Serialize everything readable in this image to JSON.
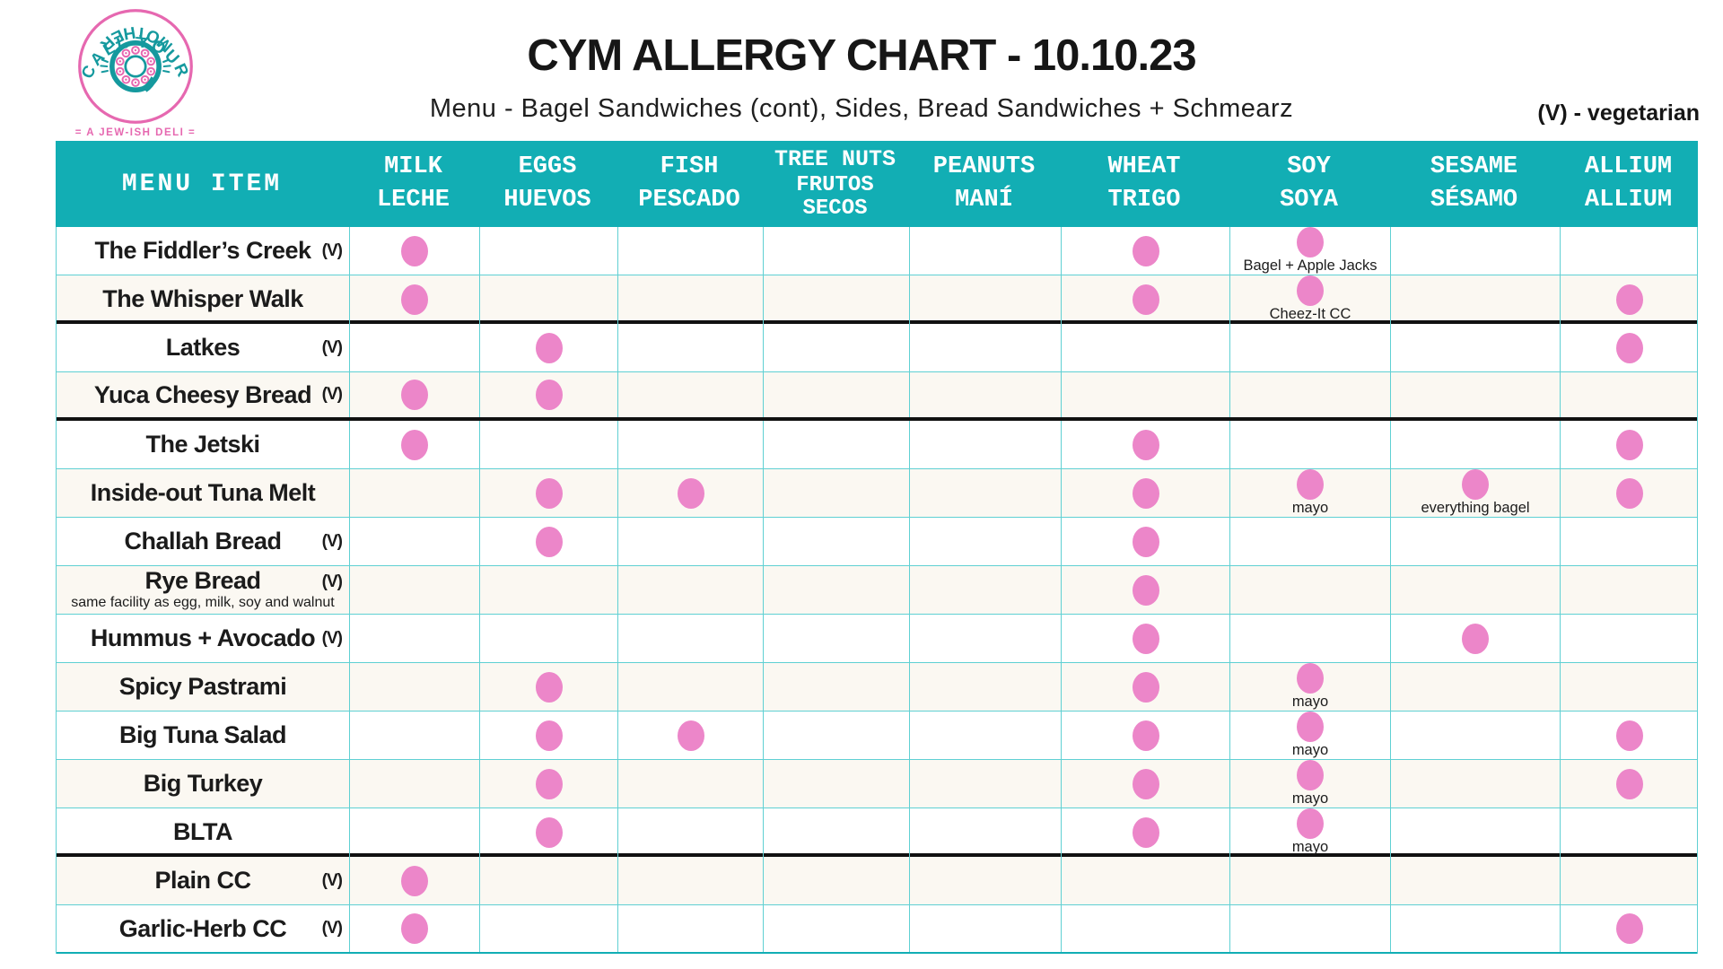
{
  "colors": {
    "teal": "#12aeb4",
    "grid": "#5fd0d3",
    "pink": "#ec86c9",
    "ink": "#1b1b1b",
    "logo-pink": "#e668b0",
    "logo-teal": "#15999e"
  },
  "header": {
    "title": "CYM ALLERGY CHART - 10.10.23",
    "subtitle": "Menu - Bagel Sandwiches (cont), Sides, Bread Sandwiches + Schmearz",
    "legend": "(V) - vegetarian",
    "logo": {
      "arc_top": "CALL YOUR",
      "arc_bottom": "MOTHER",
      "tagline": "= A JEW-ISH DELI ="
    }
  },
  "table": {
    "veg_label": "(V)"
  },
  "chart_data": {
    "type": "table",
    "title": "CYM ALLERGY CHART - 10.10.23",
    "row_header": "MENU ITEM",
    "columns": [
      {
        "key": "milk",
        "en": "MILK",
        "es": "LECHE"
      },
      {
        "key": "eggs",
        "en": "EGGS",
        "es": "HUEVOS"
      },
      {
        "key": "fish",
        "en": "FISH",
        "es": "PESCADO"
      },
      {
        "key": "tree_nuts",
        "en": "TREE NUTS",
        "es": "FRUTOS SECOS"
      },
      {
        "key": "peanuts",
        "en": "PEANUTS",
        "es": "MANÍ"
      },
      {
        "key": "wheat",
        "en": "WHEAT",
        "es": "TRIGO"
      },
      {
        "key": "soy",
        "en": "SOY",
        "es": "SOYA"
      },
      {
        "key": "sesame",
        "en": "SESAME",
        "es": "SÉSAMO"
      },
      {
        "key": "allium",
        "en": "ALLIUM",
        "es": "ALLIUM"
      }
    ],
    "rows": [
      {
        "name": "The Fiddler’s Creek",
        "veg": true,
        "dots": {
          "milk": "",
          "wheat": "",
          "soy": "Bagel + Apple Jacks"
        }
      },
      {
        "name": "The Whisper Walk",
        "veg": false,
        "divider_after": true,
        "dots": {
          "milk": "",
          "wheat": "",
          "soy": "Cheez-It CC",
          "allium": ""
        }
      },
      {
        "name": "Latkes",
        "veg": true,
        "dots": {
          "eggs": "",
          "allium": ""
        }
      },
      {
        "name": "Yuca Cheesy Bread",
        "veg": true,
        "divider_after": true,
        "dots": {
          "milk": "",
          "eggs": ""
        }
      },
      {
        "name": "The Jetski",
        "veg": false,
        "dots": {
          "milk": "",
          "wheat": "",
          "allium": ""
        }
      },
      {
        "name": "Inside-out Tuna Melt",
        "veg": false,
        "dots": {
          "eggs": "",
          "fish": "",
          "wheat": "",
          "soy": "mayo",
          "sesame": "everything bagel",
          "allium": ""
        }
      },
      {
        "name": "Challah Bread",
        "veg": true,
        "dots": {
          "eggs": "",
          "wheat": ""
        }
      },
      {
        "name": "Rye Bread",
        "veg": true,
        "sub": "same facility as egg, milk, soy and walnut",
        "dots": {
          "wheat": ""
        }
      },
      {
        "name": "Hummus + Avocado",
        "veg": true,
        "dots": {
          "wheat": "",
          "sesame": ""
        }
      },
      {
        "name": "Spicy Pastrami",
        "veg": false,
        "dots": {
          "eggs": "",
          "wheat": "",
          "soy": "mayo"
        }
      },
      {
        "name": "Big Tuna Salad",
        "veg": false,
        "dots": {
          "eggs": "",
          "fish": "",
          "wheat": "",
          "soy": "mayo",
          "allium": ""
        }
      },
      {
        "name": "Big Turkey",
        "veg": false,
        "dots": {
          "eggs": "",
          "wheat": "",
          "soy": "mayo",
          "allium": ""
        }
      },
      {
        "name": "BLTA",
        "veg": false,
        "divider_after": true,
        "dots": {
          "eggs": "",
          "wheat": "",
          "soy": "mayo"
        }
      },
      {
        "name": "Plain CC",
        "veg": true,
        "dots": {
          "milk": ""
        }
      },
      {
        "name": "Garlic-Herb CC",
        "veg": true,
        "dots": {
          "milk": "",
          "allium": ""
        }
      }
    ]
  }
}
